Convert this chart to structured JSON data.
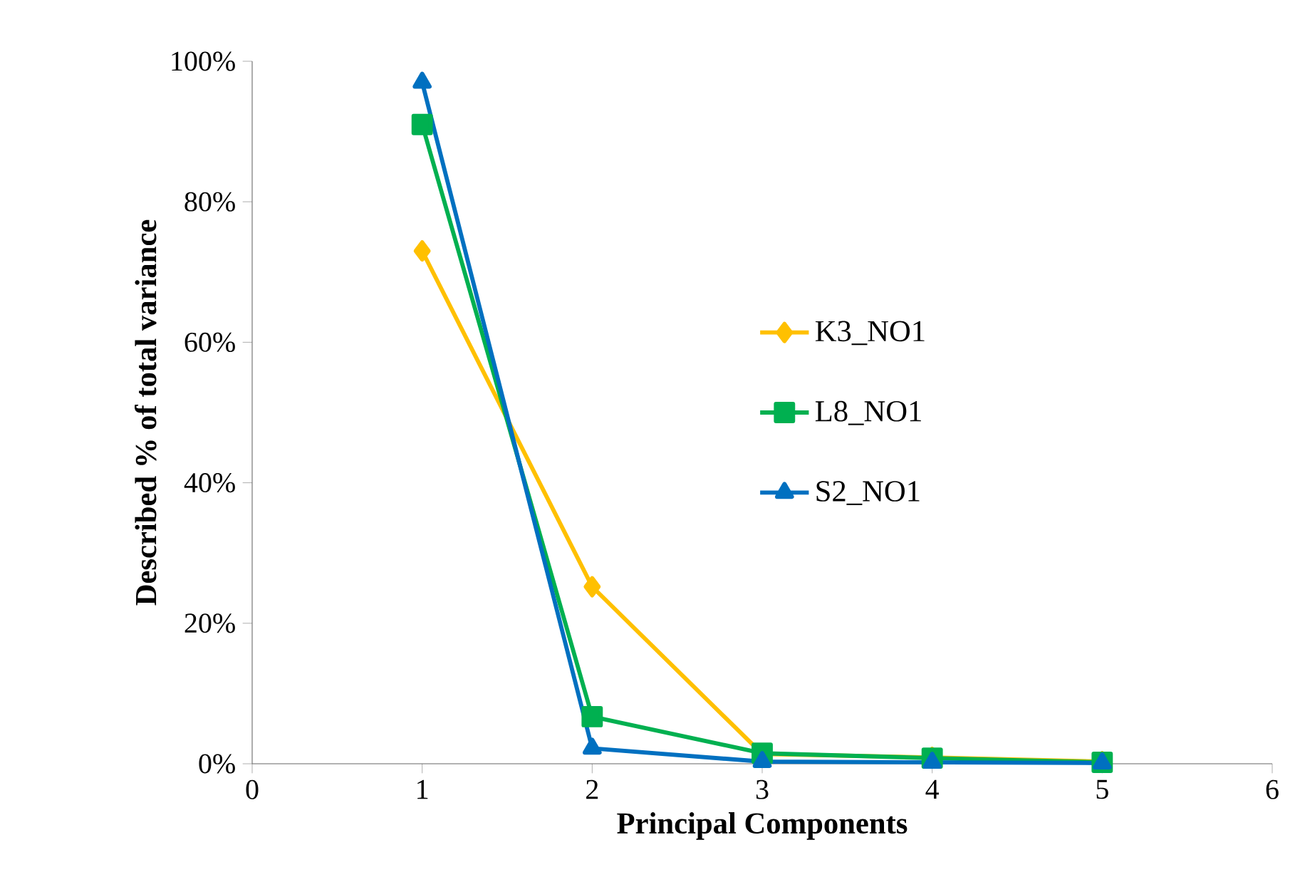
{
  "chart_data": {
    "type": "line",
    "xlabel": "Principal Components",
    "ylabel": "Described % of total variance",
    "x": [
      1,
      2,
      3,
      4,
      5
    ],
    "series": [
      {
        "name": "K3_NO1",
        "color": "#ffc000",
        "marker": "diamond",
        "values": [
          73,
          25.2,
          1.4,
          0.9,
          0.3
        ]
      },
      {
        "name": "L8_NO1",
        "color": "#00b050",
        "marker": "square",
        "values": [
          91,
          6.7,
          1.5,
          0.8,
          0.2
        ]
      },
      {
        "name": "S2_NO1",
        "color": "#0070c0",
        "marker": "triangle",
        "values": [
          97,
          2.2,
          0.3,
          0.2,
          0.1
        ]
      }
    ],
    "xlim": [
      0,
      6
    ],
    "xticks": [
      0,
      1,
      2,
      3,
      4,
      5,
      6
    ],
    "ylim": [
      0,
      100
    ],
    "yticks": [
      {
        "value": 0,
        "label": "0%"
      },
      {
        "value": 20,
        "label": "20%"
      },
      {
        "value": 40,
        "label": "40%"
      },
      {
        "value": 60,
        "label": "60%"
      },
      {
        "value": 80,
        "label": "80%"
      },
      {
        "value": 100,
        "label": "100%"
      }
    ],
    "grid": false,
    "legend": "right"
  }
}
